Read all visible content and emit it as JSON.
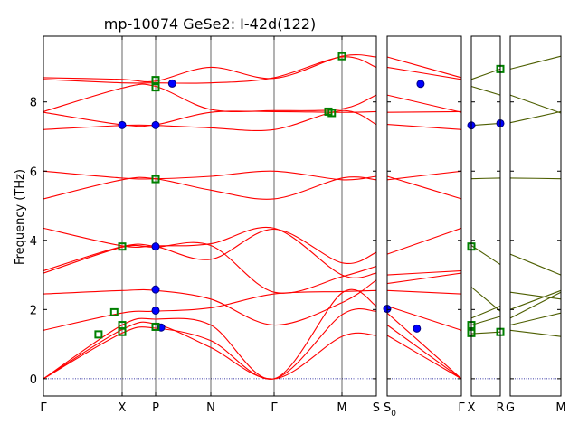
{
  "chart_data": {
    "type": "line",
    "title": "mp-10074   GeSe2: I-42d(122)",
    "ylabel": "Frequency (THz)",
    "ylim": [
      -0.5,
      9.9
    ],
    "yticks": [
      0,
      2,
      4,
      6,
      8
    ],
    "grid": false,
    "zero_line": {
      "y": 0,
      "color": "#00008b",
      "style": "dotted"
    },
    "colors": {
      "bands": "#ff0000",
      "bands_alt": "#4d5e00",
      "marker_blue": "#0000ff",
      "marker_green": "#008000"
    },
    "panels": [
      {
        "name": "panel-1",
        "xticks": [
          "Γ",
          "X",
          "P",
          "N",
          "Γ",
          "M",
          "S"
        ],
        "band_color": "#ff0000",
        "bands": [
          [
            [
              0,
              0
            ],
            [
              1,
              1.42
            ],
            [
              2,
              1.58
            ],
            [
              3,
              0.9
            ],
            [
              4,
              0
            ],
            [
              5,
              1.22
            ],
            [
              6,
              1.25
            ]
          ],
          [
            [
              0,
              0
            ],
            [
              1,
              1.32
            ],
            [
              2,
              1.46
            ],
            [
              3,
              1.1
            ],
            [
              4,
              0
            ],
            [
              5,
              1.85
            ],
            [
              6,
              1.95
            ]
          ],
          [
            [
              0,
              0
            ],
            [
              1,
              1.55
            ],
            [
              2,
              1.72
            ],
            [
              3,
              1.55
            ],
            [
              4,
              0
            ],
            [
              5,
              2.48
            ],
            [
              6,
              2.1
            ]
          ],
          [
            [
              0,
              1.4
            ],
            [
              1,
              1.9
            ],
            [
              2,
              1.95
            ],
            [
              3,
              2.05
            ],
            [
              4,
              2.45
            ],
            [
              5,
              2.52
            ],
            [
              6,
              2.55
            ]
          ],
          [
            [
              0,
              2.45
            ],
            [
              1,
              2.55
            ],
            [
              2,
              2.55
            ],
            [
              3,
              2.3
            ],
            [
              4,
              1.55
            ],
            [
              5,
              2.2
            ],
            [
              6,
              2.85
            ]
          ],
          [
            [
              0,
              3.05
            ],
            [
              1,
              3.8
            ],
            [
              2,
              3.8
            ],
            [
              3,
              3.85
            ],
            [
              4,
              2.5
            ],
            [
              5,
              2.95
            ],
            [
              6,
              3.25
            ]
          ],
          [
            [
              0,
              3.12
            ],
            [
              1,
              3.82
            ],
            [
              2,
              3.82
            ],
            [
              3,
              3.45
            ],
            [
              4,
              4.32
            ],
            [
              5,
              3.35
            ],
            [
              6,
              3.65
            ]
          ],
          [
            [
              0,
              4.35
            ],
            [
              1,
              3.84
            ],
            [
              2,
              3.84
            ],
            [
              3,
              3.9
            ],
            [
              4,
              4.35
            ],
            [
              5,
              3.0
            ],
            [
              6,
              3.05
            ]
          ],
          [
            [
              0,
              5.2
            ],
            [
              1,
              5.75
            ],
            [
              2,
              5.78
            ],
            [
              3,
              5.45
            ],
            [
              4,
              5.2
            ],
            [
              5,
              5.8
            ],
            [
              6,
              5.75
            ]
          ],
          [
            [
              0,
              6.0
            ],
            [
              1,
              5.8
            ],
            [
              2,
              5.78
            ],
            [
              3,
              5.85
            ],
            [
              4,
              6.0
            ],
            [
              5,
              5.75
            ],
            [
              6,
              5.85
            ]
          ],
          [
            [
              0,
              7.2
            ],
            [
              1,
              7.32
            ],
            [
              2,
              7.32
            ],
            [
              3,
              7.25
            ],
            [
              4,
              7.2
            ],
            [
              5,
              7.75
            ],
            [
              6,
              7.35
            ]
          ],
          [
            [
              0,
              7.7
            ],
            [
              1,
              7.34
            ],
            [
              2,
              7.34
            ],
            [
              3,
              7.7
            ],
            [
              4,
              7.72
            ],
            [
              5,
              7.7
            ],
            [
              6,
              7.72
            ]
          ],
          [
            [
              0,
              7.72
            ],
            [
              1,
              8.4
            ],
            [
              2,
              8.45
            ],
            [
              3,
              7.78
            ],
            [
              4,
              7.75
            ],
            [
              5,
              7.8
            ],
            [
              6,
              8.2
            ]
          ],
          [
            [
              0,
              8.65
            ],
            [
              1,
              8.55
            ],
            [
              2,
              8.55
            ],
            [
              3,
              8.55
            ],
            [
              4,
              8.7
            ],
            [
              5,
              9.3
            ],
            [
              6,
              9.0
            ]
          ],
          [
            [
              0,
              8.7
            ],
            [
              1,
              8.65
            ],
            [
              2,
              8.6
            ],
            [
              3,
              9.0
            ],
            [
              4,
              8.68
            ],
            [
              5,
              9.32
            ],
            [
              6,
              9.3
            ]
          ]
        ],
        "markers": [
          {
            "x": 1,
            "y": 7.33,
            "color": "blue"
          },
          {
            "x": 2,
            "y": 7.33,
            "color": "blue"
          },
          {
            "x": 2.3,
            "y": 8.53,
            "color": "blue"
          },
          {
            "x": 2,
            "y": 3.82,
            "color": "blue"
          },
          {
            "x": 2,
            "y": 2.58,
            "color": "blue"
          },
          {
            "x": 2,
            "y": 1.97,
            "color": "blue"
          },
          {
            "x": 2.1,
            "y": 1.48,
            "color": "blue"
          },
          {
            "x": 1,
            "y": 3.82,
            "color": "green"
          },
          {
            "x": 1,
            "y": 1.55,
            "color": "green"
          },
          {
            "x": 1,
            "y": 1.35,
            "color": "green"
          },
          {
            "x": 0.7,
            "y": 1.28,
            "color": "green"
          },
          {
            "x": 0.9,
            "y": 1.92,
            "color": "green"
          },
          {
            "x": 2,
            "y": 8.63,
            "color": "green"
          },
          {
            "x": 2,
            "y": 8.42,
            "color": "green"
          },
          {
            "x": 2,
            "y": 5.77,
            "color": "green"
          },
          {
            "x": 2,
            "y": 1.5,
            "color": "green"
          },
          {
            "x": 5,
            "y": 9.32,
            "color": "green"
          },
          {
            "x": 4.8,
            "y": 7.72,
            "color": "green"
          },
          {
            "x": 4.85,
            "y": 7.68,
            "color": "green"
          }
        ]
      },
      {
        "name": "panel-2",
        "xticks": [
          "S0",
          "Γ"
        ],
        "band_color": "#ff0000",
        "bands": [
          [
            [
              0,
              1.25
            ],
            [
              1,
              0
            ]
          ],
          [
            [
              0,
              1.55
            ],
            [
              1,
              0
            ]
          ],
          [
            [
              0,
              1.9
            ],
            [
              1,
              0
            ]
          ],
          [
            [
              0,
              2.1
            ],
            [
              1,
              1.4
            ]
          ],
          [
            [
              0,
              2.55
            ],
            [
              1,
              2.45
            ]
          ],
          [
            [
              0,
              2.75
            ],
            [
              1,
              3.05
            ]
          ],
          [
            [
              0,
              3.0
            ],
            [
              1,
              3.12
            ]
          ],
          [
            [
              0,
              3.6
            ],
            [
              1,
              4.35
            ]
          ],
          [
            [
              0,
              5.85
            ],
            [
              1,
              5.2
            ]
          ],
          [
            [
              0,
              5.75
            ],
            [
              1,
              6.0
            ]
          ],
          [
            [
              0,
              7.35
            ],
            [
              1,
              7.2
            ]
          ],
          [
            [
              0,
              7.7
            ],
            [
              1,
              7.72
            ]
          ],
          [
            [
              0,
              8.2
            ],
            [
              1,
              7.7
            ]
          ],
          [
            [
              0,
              9.0
            ],
            [
              1,
              8.65
            ]
          ],
          [
            [
              0,
              9.3
            ],
            [
              1,
              8.7
            ]
          ]
        ],
        "markers": [
          {
            "x": 0,
            "y": 2.02,
            "color": "blue"
          },
          {
            "x": 0.4,
            "y": 1.45,
            "color": "blue"
          },
          {
            "x": 0.45,
            "y": 8.52,
            "color": "blue"
          }
        ]
      },
      {
        "name": "panel-3",
        "xticks": [
          "X",
          "R"
        ],
        "band_color": "#4d5e00",
        "bands": [
          [
            [
              0,
              1.3
            ],
            [
              1,
              1.35
            ]
          ],
          [
            [
              0,
              1.55
            ],
            [
              1,
              1.8
            ]
          ],
          [
            [
              0,
              1.75
            ],
            [
              1,
              2.1
            ]
          ],
          [
            [
              0,
              2.65
            ],
            [
              1,
              1.95
            ]
          ],
          [
            [
              0,
              3.85
            ],
            [
              1,
              3.3
            ]
          ],
          [
            [
              0,
              5.78
            ],
            [
              1,
              5.8
            ]
          ],
          [
            [
              0,
              7.32
            ],
            [
              1,
              7.38
            ]
          ],
          [
            [
              0,
              8.45
            ],
            [
              1,
              8.2
            ]
          ],
          [
            [
              0,
              8.65
            ],
            [
              1,
              8.95
            ]
          ]
        ],
        "markers": [
          {
            "x": 0,
            "y": 7.32,
            "color": "blue"
          },
          {
            "x": 1,
            "y": 7.38,
            "color": "blue"
          },
          {
            "x": 0,
            "y": 3.82,
            "color": "green"
          },
          {
            "x": 0,
            "y": 1.55,
            "color": "green"
          },
          {
            "x": 0,
            "y": 1.32,
            "color": "green"
          },
          {
            "x": 1,
            "y": 1.35,
            "color": "green"
          },
          {
            "x": 1,
            "y": 8.95,
            "color": "green"
          }
        ]
      },
      {
        "name": "panel-4",
        "xticks": [
          "G",
          "M"
        ],
        "band_color": "#4d5e00",
        "bands": [
          [
            [
              0,
              1.4
            ],
            [
              1,
              1.22
            ]
          ],
          [
            [
              0,
              1.55
            ],
            [
              1,
              1.9
            ]
          ],
          [
            [
              0,
              1.75
            ],
            [
              1,
              2.5
            ]
          ],
          [
            [
              0,
              2.0
            ],
            [
              1,
              2.55
            ]
          ],
          [
            [
              0,
              2.5
            ],
            [
              1,
              2.3
            ]
          ],
          [
            [
              0,
              3.6
            ],
            [
              1,
              3.0
            ]
          ],
          [
            [
              0,
              5.8
            ],
            [
              1,
              5.78
            ]
          ],
          [
            [
              0,
              7.4
            ],
            [
              1,
              7.72
            ]
          ],
          [
            [
              0,
              8.2
            ],
            [
              1,
              7.68
            ]
          ],
          [
            [
              0,
              8.95
            ],
            [
              1,
              9.32
            ]
          ]
        ],
        "markers": []
      }
    ]
  }
}
